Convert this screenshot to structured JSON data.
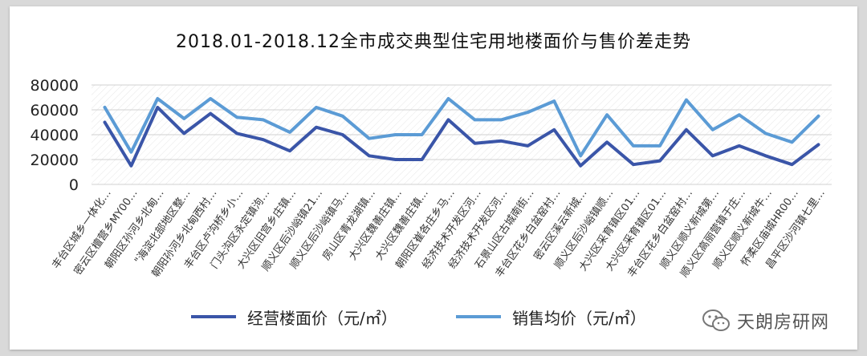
{
  "chart_data": {
    "type": "line",
    "title": "2018.01-2018.12全市成交典型住宅用地楼面价与售价差走势",
    "ylim": [
      0,
      80000
    ],
    "yticks": [
      "0",
      "20000",
      "40000",
      "60000",
      "80000"
    ],
    "grid": true,
    "legend_position": "bottom",
    "categories": [
      "丰台区城乡一体化…",
      "密云区檀营乡MY00…",
      "朝阳区孙河乡北甸…",
      "\"海淀北部地区整…",
      "朝阳孙河乡北甸西村…",
      "丰台区卢沟桥乡小…",
      "门头沟区永定镇泃…",
      "大兴区旧宫乡庄镇…",
      "顺义区后沙峪镇21…",
      "顺义区后沙峪镇马…",
      "房山区青龙湖镇…",
      "大兴区魏善庄镇…",
      "大兴区魏善庄镇…",
      "朝阳区崔各庄乡马…",
      "经济技术开发区河…",
      "经济技术开发区河…",
      "石景山区古城南街…",
      "丰台区花乡白盆窑村…",
      "密云区溪云新城…",
      "顺义区后沙峪镇顺…",
      "大兴区采育镇区01…",
      "大兴区采育镇区01…",
      "丰台区花乡白盆窑村…",
      "顺义区顺义新城第…",
      "顺义区高丽营镇于庄…",
      "顺义区顺义新城牛…",
      "怀柔区庙城HR00…",
      "昌平区沙河镇七里…"
    ],
    "series": [
      {
        "name": "经营楼面价（元/㎡）",
        "color": "#3a55a8",
        "values": [
          50000,
          15000,
          62000,
          41000,
          57000,
          41000,
          36000,
          27000,
          46000,
          40000,
          23000,
          20000,
          20000,
          52000,
          33000,
          35000,
          31000,
          44000,
          15000,
          34000,
          16000,
          19000,
          44000,
          23000,
          31000,
          23000,
          16000,
          32000
        ]
      },
      {
        "name": "销售均价（元/㎡）",
        "color": "#5b9bd5",
        "values": [
          62000,
          26000,
          69000,
          53000,
          69000,
          54000,
          52000,
          42000,
          62000,
          55000,
          37000,
          40000,
          40000,
          69000,
          52000,
          52000,
          58000,
          67000,
          23000,
          56000,
          31000,
          31000,
          68000,
          44000,
          56000,
          41000,
          34000,
          55000
        ]
      }
    ]
  },
  "watermark": {
    "text": "天朗房研网",
    "icon": "wechat-icon"
  }
}
